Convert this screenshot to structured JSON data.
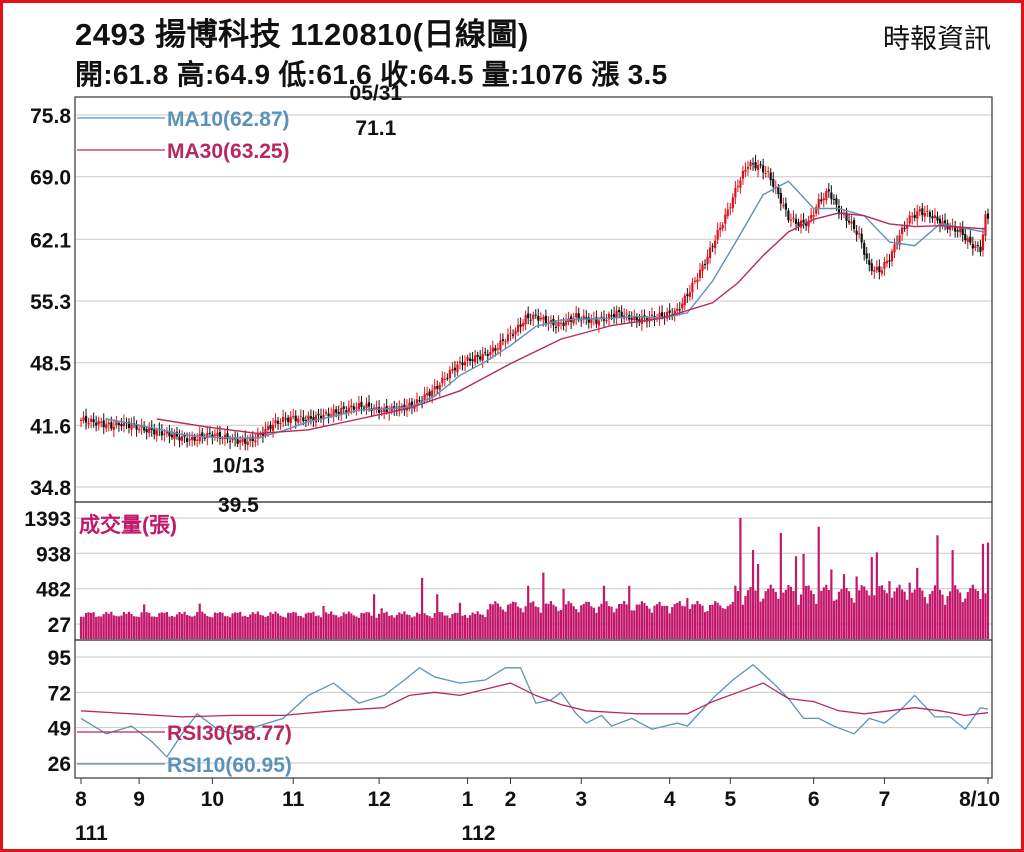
{
  "header": {
    "title": "2493  揚博科技 1120810(日線圖)",
    "source": "時報資訊",
    "ohlc": "開:61.8 高:64.9 低:61.6 收:64.5 量:1076 漲 3.5"
  },
  "colors": {
    "frame": "#e3101a",
    "up_candle": "#e3101a",
    "down_candle": "#111111",
    "ma10": "#5b93b8",
    "ma30": "#b8285e",
    "volume": "#c2186b",
    "rsi10": "#5b93b8",
    "rsi30": "#b8285e",
    "grid": "#c8c8c8"
  },
  "chart_data": [
    {
      "type": "candlestick",
      "name": "price",
      "y_ticks": [
        "75.8",
        "69.0",
        "62.1",
        "55.3",
        "48.5",
        "41.6",
        "34.8"
      ],
      "ylim": [
        34.8,
        75.8
      ],
      "legend": [
        {
          "label": "MA10(62.87)",
          "color": "#5b93b8"
        },
        {
          "label": "MA30(63.25)",
          "color": "#b8285e"
        }
      ],
      "annotations": [
        {
          "label_top": "05/31",
          "label_bottom": "71.1",
          "x": 116.7,
          "y": 71.1
        },
        {
          "label_top": "10/13",
          "label_bottom": "39.5",
          "x": 61.5,
          "y": 39.5
        }
      ],
      "close_anchors": [
        [
          0,
          42.2
        ],
        [
          4,
          42.0
        ],
        [
          8,
          41.8
        ],
        [
          12,
          41.5
        ],
        [
          16,
          41.8
        ],
        [
          20,
          41.6
        ],
        [
          24,
          41.2
        ],
        [
          28,
          41.0
        ],
        [
          32,
          40.8
        ],
        [
          36,
          40.5
        ],
        [
          40,
          40.2
        ],
        [
          44,
          40.0
        ],
        [
          48,
          40.4
        ],
        [
          52,
          40.6
        ],
        [
          56,
          40.3
        ],
        [
          60,
          40.0
        ],
        [
          64,
          39.8
        ],
        [
          68,
          40.0
        ],
        [
          72,
          40.8
        ],
        [
          76,
          41.7
        ],
        [
          80,
          42.2
        ],
        [
          84,
          42.4
        ],
        [
          88,
          42.3
        ],
        [
          92,
          42.4
        ],
        [
          96,
          42.7
        ],
        [
          100,
          43.0
        ],
        [
          104,
          43.3
        ],
        [
          108,
          43.6
        ],
        [
          112,
          43.8
        ],
        [
          116,
          43.4
        ],
        [
          120,
          43.2
        ],
        [
          124,
          43.4
        ],
        [
          128,
          43.6
        ],
        [
          132,
          43.9
        ],
        [
          136,
          44.8
        ],
        [
          140,
          45.6
        ],
        [
          144,
          46.8
        ],
        [
          148,
          48.0
        ],
        [
          152,
          48.7
        ],
        [
          156,
          49.0
        ],
        [
          160,
          49.4
        ],
        [
          164,
          50.0
        ],
        [
          168,
          51.2
        ],
        [
          172,
          52.0
        ],
        [
          176,
          53.4
        ],
        [
          180,
          53.6
        ],
        [
          184,
          53.1
        ],
        [
          188,
          52.6
        ],
        [
          192,
          53.0
        ],
        [
          196,
          53.6
        ],
        [
          200,
          53.3
        ],
        [
          204,
          53.1
        ],
        [
          208,
          53.4
        ],
        [
          212,
          54.0
        ],
        [
          216,
          53.6
        ],
        [
          220,
          53.2
        ],
        [
          224,
          53.4
        ],
        [
          228,
          53.6
        ],
        [
          232,
          53.8
        ],
        [
          236,
          54.2
        ],
        [
          240,
          56.0
        ],
        [
          244,
          58.0
        ],
        [
          248,
          60.2
        ],
        [
          252,
          62.8
        ],
        [
          256,
          65.2
        ],
        [
          260,
          68.2
        ],
        [
          264,
          70.4
        ],
        [
          268,
          70.2
        ],
        [
          272,
          69.3
        ],
        [
          276,
          67.0
        ],
        [
          280,
          64.5
        ],
        [
          284,
          63.8
        ],
        [
          288,
          64.0
        ],
        [
          292,
          66.2
        ],
        [
          296,
          67.4
        ],
        [
          300,
          65.2
        ],
        [
          304,
          64.1
        ],
        [
          308,
          62.5
        ],
        [
          312,
          59.0
        ],
        [
          316,
          58.6
        ],
        [
          320,
          60.0
        ],
        [
          324,
          62.6
        ],
        [
          328,
          64.4
        ],
        [
          332,
          65.2
        ],
        [
          336,
          64.8
        ],
        [
          340,
          64.0
        ],
        [
          344,
          63.4
        ],
        [
          348,
          63.0
        ],
        [
          352,
          61.6
        ],
        [
          356,
          61.0
        ],
        [
          358,
          64.5
        ]
      ],
      "ma10": [
        [
          10,
          42.3
        ],
        [
          20,
          41.8
        ],
        [
          30,
          41.2
        ],
        [
          40,
          40.6
        ],
        [
          50,
          40.3
        ],
        [
          60,
          40.2
        ],
        [
          70,
          40.2
        ],
        [
          80,
          41.0
        ],
        [
          90,
          42.0
        ],
        [
          100,
          42.6
        ],
        [
          110,
          43.3
        ],
        [
          120,
          43.4
        ],
        [
          130,
          43.6
        ],
        [
          140,
          44.8
        ],
        [
          150,
          47.1
        ],
        [
          160,
          48.6
        ],
        [
          170,
          50.4
        ],
        [
          180,
          52.5
        ],
        [
          190,
          53.2
        ],
        [
          200,
          53.3
        ],
        [
          210,
          53.4
        ],
        [
          220,
          53.6
        ],
        [
          230,
          53.4
        ],
        [
          240,
          54.0
        ],
        [
          250,
          57.5
        ],
        [
          260,
          62.2
        ],
        [
          270,
          67.0
        ],
        [
          280,
          68.5
        ],
        [
          290,
          65.5
        ],
        [
          300,
          65.5
        ],
        [
          310,
          64.7
        ],
        [
          320,
          61.8
        ],
        [
          330,
          61.4
        ],
        [
          340,
          63.8
        ],
        [
          350,
          63.3
        ],
        [
          358,
          62.87
        ]
      ],
      "ma30": [
        [
          30,
          42.3
        ],
        [
          50,
          41.4
        ],
        [
          70,
          40.7
        ],
        [
          90,
          41.1
        ],
        [
          110,
          42.3
        ],
        [
          130,
          43.5
        ],
        [
          150,
          45.4
        ],
        [
          170,
          48.4
        ],
        [
          190,
          51.1
        ],
        [
          210,
          52.6
        ],
        [
          230,
          53.4
        ],
        [
          250,
          55.1
        ],
        [
          260,
          57.3
        ],
        [
          270,
          60.3
        ],
        [
          280,
          62.9
        ],
        [
          290,
          64.3
        ],
        [
          300,
          65.0
        ],
        [
          310,
          64.7
        ],
        [
          320,
          63.8
        ],
        [
          330,
          63.5
        ],
        [
          340,
          63.6
        ],
        [
          350,
          63.4
        ],
        [
          358,
          63.25
        ]
      ]
    },
    {
      "type": "bar",
      "name": "volume",
      "legend": "成交量(張)",
      "y_ticks": [
        "1393",
        "938",
        "482",
        "27"
      ],
      "ylim": [
        27,
        1393
      ],
      "spikes": [
        [
          25,
          280
        ],
        [
          47,
          290
        ],
        [
          96,
          260
        ],
        [
          116,
          410
        ],
        [
          119,
          230
        ],
        [
          135,
          620
        ],
        [
          141,
          410
        ],
        [
          150,
          300
        ],
        [
          163,
          280
        ],
        [
          177,
          520
        ],
        [
          183,
          690
        ],
        [
          191,
          480
        ],
        [
          207,
          520
        ],
        [
          217,
          520
        ],
        [
          230,
          260
        ],
        [
          232,
          260
        ],
        [
          240,
          360
        ],
        [
          247,
          180
        ],
        [
          255,
          220
        ],
        [
          261,
          1393
        ],
        [
          266,
          980
        ],
        [
          268,
          800
        ],
        [
          277,
          1200
        ],
        [
          283,
          900
        ],
        [
          286,
          930
        ],
        [
          292,
          1280
        ],
        [
          297,
          730
        ],
        [
          302,
          670
        ],
        [
          307,
          640
        ],
        [
          313,
          890
        ],
        [
          315,
          950
        ],
        [
          320,
          580
        ],
        [
          328,
          560
        ],
        [
          331,
          750
        ],
        [
          339,
          1170
        ],
        [
          345,
          980
        ],
        [
          357,
          1060
        ],
        [
          359,
          1076
        ]
      ]
    },
    {
      "type": "line",
      "name": "rsi",
      "y_ticks": [
        "95",
        "72",
        "49",
        "26"
      ],
      "ylim": [
        26,
        95
      ],
      "legend": [
        {
          "label": "RSI30(58.77)",
          "color": "#b8285e"
        },
        {
          "label": "RSI10(60.95)",
          "color": "#5b93b8"
        }
      ],
      "rsi10": [
        [
          0,
          55
        ],
        [
          10,
          45
        ],
        [
          20,
          50
        ],
        [
          28,
          40
        ],
        [
          34,
          30
        ],
        [
          40,
          45
        ],
        [
          46,
          58
        ],
        [
          54,
          48
        ],
        [
          60,
          45
        ],
        [
          70,
          50
        ],
        [
          80,
          55
        ],
        [
          90,
          70
        ],
        [
          100,
          78
        ],
        [
          110,
          65
        ],
        [
          120,
          70
        ],
        [
          128,
          80
        ],
        [
          134,
          88
        ],
        [
          140,
          82
        ],
        [
          150,
          78
        ],
        [
          160,
          80
        ],
        [
          168,
          88
        ],
        [
          174,
          88
        ],
        [
          180,
          65
        ],
        [
          186,
          67
        ],
        [
          190,
          72
        ],
        [
          196,
          58
        ],
        [
          200,
          52
        ],
        [
          206,
          57
        ],
        [
          210,
          50
        ],
        [
          218,
          55
        ],
        [
          226,
          48
        ],
        [
          236,
          52
        ],
        [
          240,
          50
        ],
        [
          250,
          68
        ],
        [
          258,
          80
        ],
        [
          266,
          90
        ],
        [
          270,
          84
        ],
        [
          274,
          78
        ],
        [
          280,
          68
        ],
        [
          286,
          55
        ],
        [
          292,
          55
        ],
        [
          298,
          50
        ],
        [
          306,
          45
        ],
        [
          312,
          55
        ],
        [
          318,
          52
        ],
        [
          324,
          60
        ],
        [
          330,
          70
        ],
        [
          338,
          56
        ],
        [
          344,
          56
        ],
        [
          350,
          48
        ],
        [
          356,
          62
        ],
        [
          359,
          60.95
        ]
      ],
      "rsi30": [
        [
          0,
          60
        ],
        [
          20,
          58
        ],
        [
          40,
          56
        ],
        [
          60,
          57
        ],
        [
          80,
          57
        ],
        [
          100,
          60
        ],
        [
          120,
          62
        ],
        [
          130,
          70
        ],
        [
          140,
          72
        ],
        [
          150,
          70
        ],
        [
          160,
          74
        ],
        [
          170,
          78
        ],
        [
          180,
          70
        ],
        [
          190,
          64
        ],
        [
          200,
          60
        ],
        [
          220,
          58
        ],
        [
          240,
          58
        ],
        [
          250,
          66
        ],
        [
          260,
          72
        ],
        [
          270,
          78
        ],
        [
          280,
          68
        ],
        [
          290,
          66
        ],
        [
          300,
          60
        ],
        [
          310,
          58
        ],
        [
          320,
          60
        ],
        [
          330,
          62
        ],
        [
          340,
          60
        ],
        [
          350,
          57
        ],
        [
          359,
          58.77
        ]
      ]
    }
  ],
  "x_axis": {
    "tick_labels": [
      {
        "label": "8",
        "x": 0
      },
      {
        "label": "9",
        "x": 23
      },
      {
        "label": "10",
        "x": 52
      },
      {
        "label": "11",
        "x": 84
      },
      {
        "label": "12",
        "x": 118
      },
      {
        "label": "1",
        "x": 153
      },
      {
        "label": "2",
        "x": 170
      },
      {
        "label": "3",
        "x": 198
      },
      {
        "label": "4",
        "x": 233
      },
      {
        "label": "5",
        "x": 257
      },
      {
        "label": "6",
        "x": 290
      },
      {
        "label": "7",
        "x": 318
      },
      {
        "label": "8/10",
        "x": 359
      }
    ],
    "year_labels": [
      {
        "label": "111",
        "x": 0
      },
      {
        "label": "112",
        "x": 153
      }
    ]
  }
}
